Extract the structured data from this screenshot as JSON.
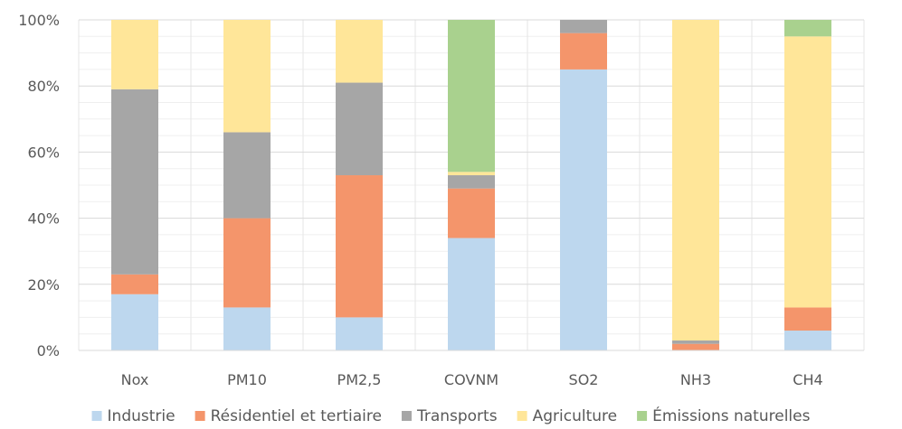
{
  "chart_data": {
    "type": "bar",
    "stacked": true,
    "percent": true,
    "categories": [
      "Nox",
      "PM10",
      "PM2,5",
      "COVNM",
      "SO2",
      "NH3",
      "CH4"
    ],
    "series": [
      {
        "name": "Industrie",
        "color": "#bdd7ee",
        "values": [
          17,
          13,
          10,
          34,
          85,
          0,
          6
        ]
      },
      {
        "name": "Résidentiel et tertiaire",
        "color": "#f4956b",
        "values": [
          6,
          27,
          43,
          15,
          11,
          2,
          7
        ]
      },
      {
        "name": "Transports",
        "color": "#a6a6a6",
        "values": [
          56,
          26,
          28,
          4,
          4,
          1,
          0
        ]
      },
      {
        "name": "Agriculture",
        "color": "#ffe699",
        "values": [
          21,
          34,
          19,
          1,
          0,
          97,
          82
        ]
      },
      {
        "name": "Émissions naturelles",
        "color": "#a9d18e",
        "values": [
          0,
          0,
          0,
          46,
          0,
          0,
          5
        ]
      }
    ],
    "yticks": [
      "0%",
      "20%",
      "40%",
      "60%",
      "80%",
      "100%"
    ],
    "ylim": [
      0,
      100
    ],
    "grid": true,
    "legend_position": "bottom"
  }
}
